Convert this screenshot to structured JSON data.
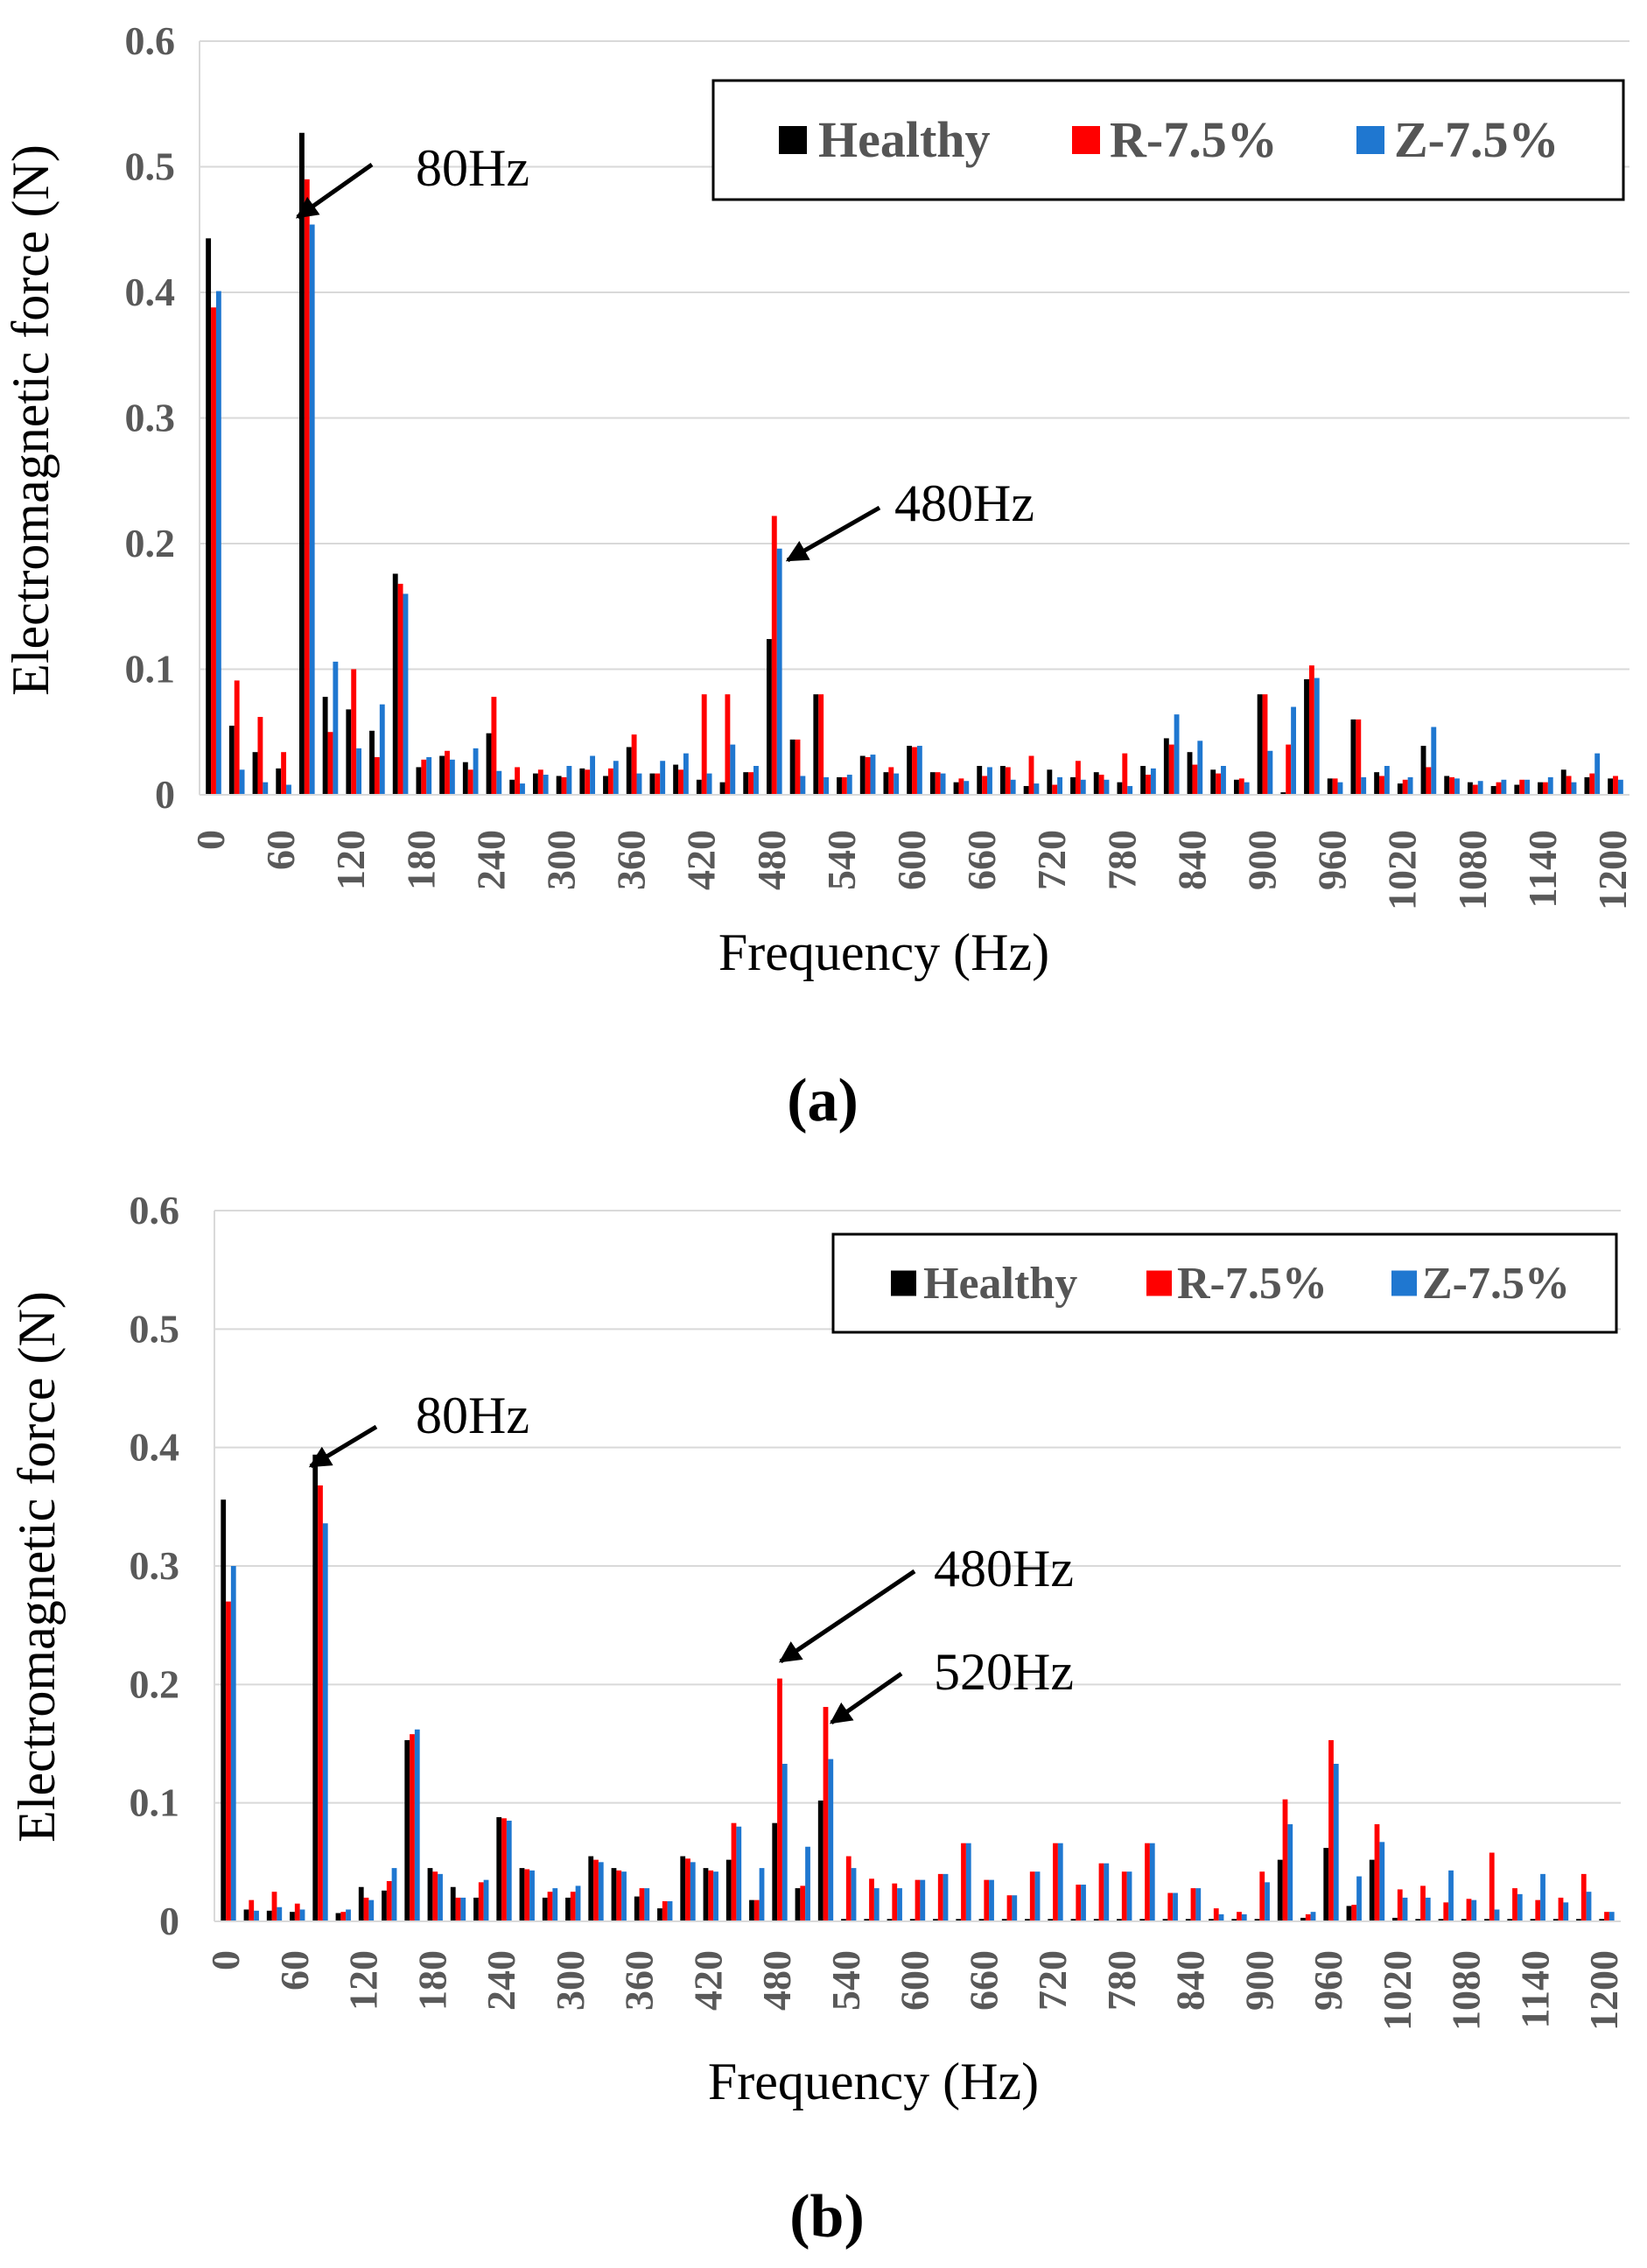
{
  "chart_data": [
    {
      "type": "bar",
      "panel_label": "(a)",
      "xlabel": "Frequency (Hz)",
      "ylabel": "Electromagnetic force (N)",
      "ylim": [
        0,
        0.6
      ],
      "yticks": [
        "0",
        "0.1",
        "0.2",
        "0.3",
        "0.4",
        "0.5",
        "0.6"
      ],
      "xticks": [
        "0",
        "60",
        "120",
        "180",
        "240",
        "300",
        "360",
        "420",
        "480",
        "540",
        "600",
        "660",
        "720",
        "780",
        "840",
        "900",
        "960",
        "1020",
        "1080",
        "1140",
        "1200"
      ],
      "x": [
        0,
        20,
        40,
        60,
        80,
        100,
        120,
        140,
        160,
        180,
        200,
        220,
        240,
        260,
        280,
        300,
        320,
        340,
        360,
        380,
        400,
        420,
        440,
        460,
        480,
        500,
        520,
        540,
        560,
        580,
        600,
        620,
        640,
        660,
        680,
        700,
        720,
        740,
        760,
        780,
        800,
        820,
        840,
        860,
        880,
        900,
        920,
        940,
        960,
        980,
        1000,
        1020,
        1040,
        1060,
        1080,
        1100,
        1120,
        1140,
        1160,
        1180,
        1200
      ],
      "series": [
        {
          "name": "Healthy",
          "color": "#000000",
          "values": [
            0.443,
            0.055,
            0.034,
            0.021,
            0.527,
            0.078,
            0.068,
            0.051,
            0.176,
            0.022,
            0.031,
            0.026,
            0.049,
            0.012,
            0.017,
            0.015,
            0.021,
            0.015,
            0.038,
            0.017,
            0.024,
            0.012,
            0.01,
            0.018,
            0.124,
            0.044,
            0.08,
            0.014,
            0.031,
            0.018,
            0.039,
            0.018,
            0.01,
            0.023,
            0.023,
            0.007,
            0.02,
            0.014,
            0.018,
            0.01,
            0.023,
            0.045,
            0.034,
            0.02,
            0.012,
            0.08,
            0.002,
            0.092,
            0.013,
            0.06,
            0.018,
            0.009,
            0.039,
            0.015,
            0.01,
            0.007,
            0.008,
            0.01,
            0.02,
            0.014,
            0.013
          ]
        },
        {
          "name": "R-7.5%",
          "color": "#ff0000",
          "values": [
            0.388,
            0.091,
            0.062,
            0.034,
            0.49,
            0.05,
            0.1,
            0.03,
            0.168,
            0.028,
            0.035,
            0.02,
            0.078,
            0.022,
            0.02,
            0.014,
            0.02,
            0.021,
            0.048,
            0.017,
            0.02,
            0.08,
            0.08,
            0.018,
            0.222,
            0.044,
            0.08,
            0.014,
            0.03,
            0.022,
            0.038,
            0.018,
            0.013,
            0.015,
            0.022,
            0.031,
            0.008,
            0.027,
            0.016,
            0.033,
            0.016,
            0.04,
            0.024,
            0.017,
            0.013,
            0.08,
            0.04,
            0.103,
            0.013,
            0.06,
            0.015,
            0.012,
            0.022,
            0.014,
            0.008,
            0.01,
            0.012,
            0.01,
            0.015,
            0.017,
            0.015
          ]
        },
        {
          "name": "Z-7.5%",
          "color": "#1f77d0",
          "values": [
            0.401,
            0.02,
            0.01,
            0.008,
            0.454,
            0.106,
            0.037,
            0.072,
            0.16,
            0.03,
            0.028,
            0.037,
            0.019,
            0.009,
            0.016,
            0.023,
            0.031,
            0.027,
            0.017,
            0.027,
            0.033,
            0.017,
            0.04,
            0.023,
            0.196,
            0.015,
            0.014,
            0.016,
            0.032,
            0.017,
            0.039,
            0.017,
            0.011,
            0.022,
            0.012,
            0.009,
            0.014,
            0.012,
            0.012,
            0.007,
            0.021,
            0.064,
            0.043,
            0.023,
            0.01,
            0.035,
            0.07,
            0.093,
            0.01,
            0.014,
            0.023,
            0.014,
            0.054,
            0.013,
            0.011,
            0.012,
            0.012,
            0.014,
            0.01,
            0.033,
            0.012
          ]
        }
      ],
      "annotations": [
        {
          "text": "80Hz",
          "x": 80
        },
        {
          "text": "480Hz",
          "x": 480
        }
      ]
    },
    {
      "type": "bar",
      "panel_label": "(b)",
      "xlabel": "Frequency (Hz)",
      "ylabel": "Electromagnetic force (N)",
      "ylim": [
        0,
        0.6
      ],
      "yticks": [
        "0",
        "0.1",
        "0.2",
        "0.3",
        "0.4",
        "0.5",
        "0.6"
      ],
      "xticks": [
        "0",
        "60",
        "120",
        "180",
        "240",
        "300",
        "360",
        "420",
        "480",
        "540",
        "600",
        "660",
        "720",
        "780",
        "840",
        "900",
        "960",
        "1020",
        "1080",
        "1140",
        "1200"
      ],
      "x": [
        0,
        20,
        40,
        60,
        80,
        100,
        120,
        140,
        160,
        180,
        200,
        220,
        240,
        260,
        280,
        300,
        320,
        340,
        360,
        380,
        400,
        420,
        440,
        460,
        480,
        500,
        520,
        540,
        560,
        580,
        600,
        620,
        640,
        660,
        680,
        700,
        720,
        740,
        760,
        780,
        800,
        820,
        840,
        860,
        880,
        900,
        920,
        940,
        960,
        980,
        1000,
        1020,
        1040,
        1060,
        1080,
        1100,
        1120,
        1140,
        1160,
        1180,
        1200
      ],
      "series": [
        {
          "name": "Healthy",
          "color": "#000000",
          "values": [
            0.356,
            0.01,
            0.009,
            0.008,
            0.394,
            0.007,
            0.029,
            0.026,
            0.153,
            0.045,
            0.029,
            0.02,
            0.088,
            0.045,
            0.02,
            0.02,
            0.055,
            0.045,
            0.021,
            0.011,
            0.055,
            0.045,
            0.052,
            0.018,
            0.083,
            0.028,
            0.102,
            0.002,
            0.002,
            0.002,
            0.002,
            0.002,
            0.002,
            0.002,
            0.002,
            0.002,
            0.002,
            0.002,
            0.002,
            0.002,
            0.002,
            0.002,
            0.002,
            0.002,
            0.002,
            0.002,
            0.052,
            0.003,
            0.062,
            0.013,
            0.052,
            0.003,
            0.002,
            0.002,
            0.002,
            0.002,
            0.002,
            0.002,
            0.002,
            0.002,
            0.002
          ]
        },
        {
          "name": "R-7.5%",
          "color": "#ff0000",
          "values": [
            0.27,
            0.018,
            0.025,
            0.015,
            0.368,
            0.008,
            0.02,
            0.034,
            0.158,
            0.042,
            0.02,
            0.033,
            0.087,
            0.044,
            0.025,
            0.025,
            0.052,
            0.043,
            0.028,
            0.017,
            0.053,
            0.043,
            0.083,
            0.018,
            0.205,
            0.03,
            0.181,
            0.055,
            0.036,
            0.032,
            0.035,
            0.04,
            0.066,
            0.035,
            0.022,
            0.042,
            0.066,
            0.031,
            0.049,
            0.042,
            0.066,
            0.024,
            0.028,
            0.011,
            0.008,
            0.042,
            0.103,
            0.006,
            0.153,
            0.014,
            0.082,
            0.027,
            0.03,
            0.016,
            0.019,
            0.058,
            0.028,
            0.018,
            0.02,
            0.04,
            0.008
          ]
        },
        {
          "name": "Z-7.5%",
          "color": "#1f77d0",
          "values": [
            0.3,
            0.009,
            0.012,
            0.01,
            0.336,
            0.01,
            0.018,
            0.045,
            0.162,
            0.04,
            0.02,
            0.035,
            0.085,
            0.043,
            0.028,
            0.03,
            0.05,
            0.042,
            0.028,
            0.017,
            0.05,
            0.042,
            0.08,
            0.045,
            0.133,
            0.063,
            0.137,
            0.045,
            0.028,
            0.028,
            0.035,
            0.04,
            0.066,
            0.035,
            0.022,
            0.042,
            0.066,
            0.031,
            0.049,
            0.042,
            0.066,
            0.024,
            0.028,
            0.006,
            0.006,
            0.033,
            0.082,
            0.008,
            0.133,
            0.038,
            0.067,
            0.02,
            0.02,
            0.043,
            0.018,
            0.01,
            0.023,
            0.04,
            0.016,
            0.025,
            0.008
          ]
        }
      ],
      "annotations": [
        {
          "text": "80Hz",
          "x": 80
        },
        {
          "text": "480Hz",
          "x": 480
        },
        {
          "text": "520Hz",
          "x": 520
        }
      ]
    }
  ]
}
